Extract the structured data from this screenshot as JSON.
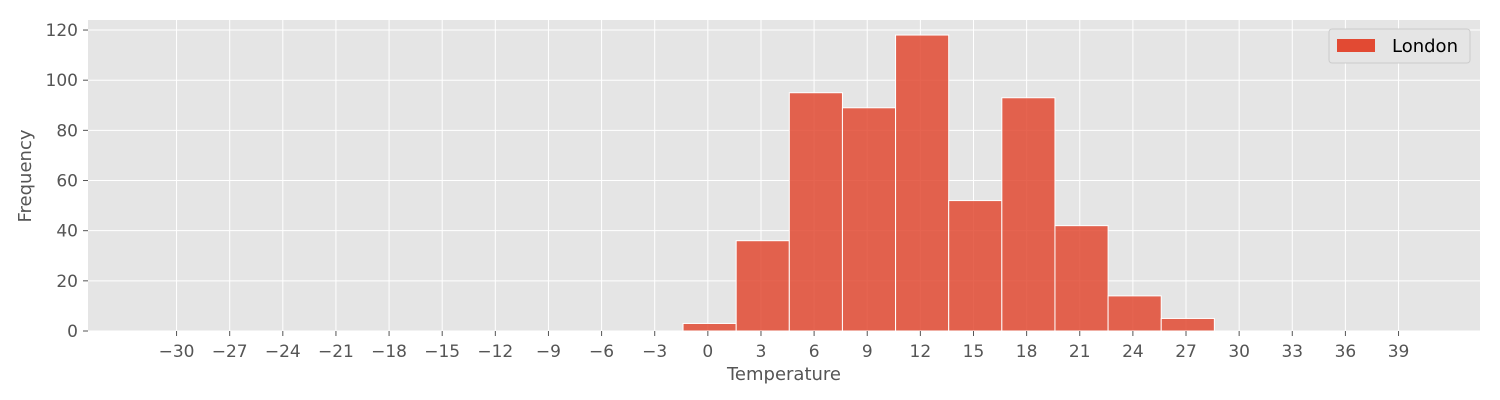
{
  "chart_data": {
    "type": "bar",
    "xlabel": "Temperature",
    "ylabel": "Frequency",
    "xlim": [
      -35.0,
      43.6
    ],
    "ylim": [
      0,
      124
    ],
    "xticks": [
      -30,
      -27,
      -24,
      -21,
      -18,
      -15,
      -12,
      -9,
      -6,
      -3,
      0,
      3,
      6,
      9,
      12,
      15,
      18,
      21,
      24,
      27,
      30,
      33,
      36,
      39
    ],
    "xtick_labels": [
      "−30",
      "−27",
      "−24",
      "−21",
      "−18",
      "−15",
      "−12",
      "−9",
      "−6",
      "−3",
      "0",
      "3",
      "6",
      "9",
      "12",
      "15",
      "18",
      "21",
      "24",
      "27",
      "30",
      "33",
      "36",
      "39"
    ],
    "yticks": [
      0,
      20,
      40,
      60,
      80,
      100,
      120
    ],
    "ytick_labels": [
      "0",
      "20",
      "40",
      "60",
      "80",
      "100",
      "120"
    ],
    "grid": true,
    "legend_position": "top-right",
    "series": [
      {
        "name": "London",
        "color": "#e24a33",
        "bin_width": 3,
        "bin_starts": [
          -1.4,
          1.6,
          4.6,
          7.6,
          10.6,
          13.6,
          16.6,
          19.6,
          22.6,
          25.6
        ],
        "values": [
          3,
          36,
          95,
          89,
          118,
          52,
          93,
          42,
          14,
          5
        ]
      }
    ]
  }
}
